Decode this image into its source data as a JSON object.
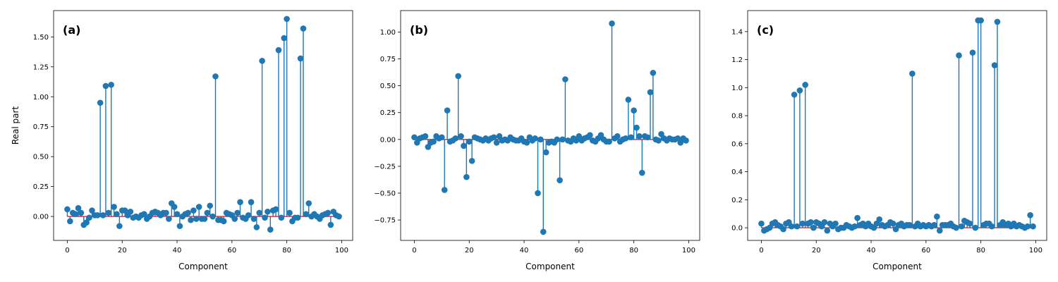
{
  "chart_data": [
    {
      "type": "stem",
      "panel_label": "(a)",
      "xlabel": "Component",
      "ylabel": "Real part",
      "xlim": [
        -5,
        104
      ],
      "ylim": [
        -0.2,
        1.72
      ],
      "xticks": [
        0,
        20,
        40,
        60,
        80,
        100
      ],
      "xtick_labels": [
        "0",
        "20",
        "40",
        "60",
        "80",
        "100"
      ],
      "yticks": [
        0,
        0.25,
        0.5,
        0.75,
        1.0,
        1.25,
        1.5
      ],
      "ytick_labels": [
        "0.00",
        "0.25",
        "0.50",
        "0.75",
        "1.00",
        "1.25",
        "1.50"
      ],
      "x": [
        0,
        1,
        2,
        3,
        4,
        5,
        6,
        7,
        8,
        9,
        10,
        11,
        12,
        13,
        14,
        15,
        16,
        17,
        18,
        19,
        20,
        21,
        22,
        23,
        24,
        25,
        26,
        27,
        28,
        29,
        30,
        31,
        32,
        33,
        34,
        35,
        36,
        37,
        38,
        39,
        40,
        41,
        42,
        43,
        44,
        45,
        46,
        47,
        48,
        49,
        50,
        51,
        52,
        53,
        54,
        55,
        56,
        57,
        58,
        59,
        60,
        61,
        62,
        63,
        64,
        65,
        66,
        67,
        68,
        69,
        70,
        71,
        72,
        73,
        74,
        75,
        76,
        77,
        78,
        79,
        80,
        81,
        82,
        83,
        84,
        85,
        86,
        87,
        88,
        89,
        90,
        91,
        92,
        93,
        94,
        95,
        96,
        97,
        98,
        99
      ],
      "values": [
        0.06,
        -0.04,
        0.03,
        0.02,
        0.07,
        0.03,
        -0.07,
        -0.05,
        -0.01,
        0.05,
        0.01,
        0.01,
        0.95,
        0.01,
        1.09,
        0.03,
        1.1,
        0.08,
        0.02,
        -0.08,
        0.05,
        0.05,
        0.01,
        0.04,
        -0.01,
        0.0,
        -0.01,
        0.01,
        0.02,
        -0.02,
        0.0,
        0.03,
        0.04,
        0.03,
        0.01,
        0.03,
        0.03,
        -0.02,
        0.11,
        0.08,
        0.02,
        -0.08,
        0.0,
        0.02,
        0.03,
        -0.03,
        0.05,
        -0.02,
        0.08,
        -0.02,
        -0.02,
        0.03,
        0.09,
        0.0,
        1.17,
        -0.03,
        -0.03,
        -0.04,
        0.03,
        0.02,
        0.01,
        -0.02,
        0.03,
        0.12,
        -0.01,
        -0.02,
        0.01,
        0.12,
        -0.02,
        -0.09,
        0.03,
        1.3,
        -0.01,
        0.04,
        -0.11,
        0.05,
        0.06,
        1.39,
        -0.01,
        1.49,
        1.65,
        0.03,
        -0.04,
        -0.01,
        -0.01,
        1.32,
        1.57,
        0.02,
        0.11,
        0.0,
        0.02,
        0.0,
        -0.02,
        0.01,
        0.02,
        0.03,
        -0.07,
        0.04,
        0.01,
        0.0
      ]
    },
    {
      "type": "stem",
      "panel_label": "(b)",
      "xlabel": "Component",
      "ylabel": "",
      "xlim": [
        -5,
        104
      ],
      "ylim": [
        -0.94,
        1.2
      ],
      "xticks": [
        0,
        20,
        40,
        60,
        80,
        100
      ],
      "xtick_labels": [
        "0",
        "20",
        "40",
        "60",
        "80",
        "100"
      ],
      "yticks": [
        -0.75,
        -0.5,
        -0.25,
        0,
        0.25,
        0.5,
        0.75,
        1.0
      ],
      "ytick_labels": [
        "−0.75",
        "−0.50",
        "−0.25",
        "0.00",
        "0.25",
        "0.50",
        "0.75",
        "1.00"
      ],
      "x": [
        0,
        1,
        2,
        3,
        4,
        5,
        6,
        7,
        8,
        9,
        10,
        11,
        12,
        13,
        14,
        15,
        16,
        17,
        18,
        19,
        20,
        21,
        22,
        23,
        24,
        25,
        26,
        27,
        28,
        29,
        30,
        31,
        32,
        33,
        34,
        35,
        36,
        37,
        38,
        39,
        40,
        41,
        42,
        43,
        44,
        45,
        46,
        47,
        48,
        49,
        50,
        51,
        52,
        53,
        54,
        55,
        56,
        57,
        58,
        59,
        60,
        61,
        62,
        63,
        64,
        65,
        66,
        67,
        68,
        69,
        70,
        71,
        72,
        73,
        74,
        75,
        76,
        77,
        78,
        79,
        80,
        81,
        82,
        83,
        84,
        85,
        86,
        87,
        88,
        89,
        90,
        91,
        92,
        93,
        94,
        95,
        96,
        97,
        98,
        99
      ],
      "values": [
        0.02,
        -0.03,
        0.01,
        0.02,
        0.03,
        -0.07,
        -0.03,
        -0.02,
        0.03,
        0.01,
        0.02,
        -0.47,
        0.27,
        -0.02,
        -0.01,
        0.01,
        0.59,
        0.03,
        -0.06,
        -0.35,
        -0.02,
        -0.2,
        0.02,
        0.01,
        0.0,
        -0.01,
        0.01,
        -0.01,
        0.01,
        0.02,
        -0.03,
        0.03,
        -0.01,
        0.0,
        -0.01,
        0.02,
        0.0,
        -0.01,
        -0.01,
        0.01,
        -0.02,
        -0.03,
        0.02,
        -0.01,
        0.01,
        -0.5,
        0.0,
        -0.86,
        -0.12,
        -0.03,
        -0.02,
        -0.03,
        0.0,
        -0.38,
        0.0,
        0.56,
        -0.01,
        -0.02,
        0.01,
        -0.01,
        0.03,
        -0.01,
        0.01,
        0.02,
        0.04,
        -0.01,
        -0.02,
        0.01,
        0.04,
        0.0,
        -0.02,
        -0.02,
        1.08,
        0.01,
        0.03,
        -0.02,
        0.0,
        0.01,
        0.37,
        0.02,
        0.27,
        0.11,
        0.03,
        -0.31,
        0.03,
        0.02,
        0.44,
        0.62,
        0.0,
        -0.01,
        0.05,
        0.01,
        -0.01,
        0.01,
        0.0,
        0.0,
        0.01,
        -0.03,
        0.01,
        -0.01
      ]
    },
    {
      "type": "stem",
      "panel_label": "(c)",
      "xlabel": "Component",
      "ylabel": "",
      "xlim": [
        -5,
        104
      ],
      "ylim": [
        -0.09,
        1.55
      ],
      "xticks": [
        0,
        20,
        40,
        60,
        80,
        100
      ],
      "xtick_labels": [
        "0",
        "20",
        "40",
        "60",
        "80",
        "100"
      ],
      "yticks": [
        0,
        0.2,
        0.4,
        0.6,
        0.8,
        1.0,
        1.2,
        1.4
      ],
      "ytick_labels": [
        "0.0",
        "0.2",
        "0.4",
        "0.6",
        "0.8",
        "1.0",
        "1.2",
        "1.4"
      ],
      "x": [
        0,
        1,
        2,
        3,
        4,
        5,
        6,
        7,
        8,
        9,
        10,
        11,
        12,
        13,
        14,
        15,
        16,
        17,
        18,
        19,
        20,
        21,
        22,
        23,
        24,
        25,
        26,
        27,
        28,
        29,
        30,
        31,
        32,
        33,
        34,
        35,
        36,
        37,
        38,
        39,
        40,
        41,
        42,
        43,
        44,
        45,
        46,
        47,
        48,
        49,
        50,
        51,
        52,
        53,
        54,
        55,
        56,
        57,
        58,
        59,
        60,
        61,
        62,
        63,
        64,
        65,
        66,
        67,
        68,
        69,
        70,
        71,
        72,
        73,
        74,
        75,
        76,
        77,
        78,
        79,
        80,
        81,
        82,
        83,
        84,
        85,
        86,
        87,
        88,
        89,
        90,
        91,
        92,
        93,
        94,
        95,
        96,
        97,
        98,
        99
      ],
      "values": [
        0.03,
        -0.02,
        -0.01,
        0.0,
        0.03,
        0.04,
        0.02,
        0.01,
        -0.01,
        0.03,
        0.04,
        0.01,
        0.95,
        0.01,
        0.98,
        0.03,
        1.02,
        0.03,
        0.04,
        0.0,
        0.04,
        0.03,
        0.01,
        0.04,
        -0.02,
        0.03,
        0.01,
        0.03,
        -0.01,
        0.0,
        0.0,
        0.02,
        0.01,
        0.0,
        0.01,
        0.07,
        0.02,
        0.03,
        0.01,
        0.03,
        0.01,
        0.0,
        0.03,
        0.06,
        0.02,
        0.01,
        0.02,
        0.04,
        0.03,
        -0.01,
        0.02,
        0.03,
        0.01,
        0.02,
        0.02,
        1.1,
        0.01,
        0.03,
        0.01,
        0.02,
        0.01,
        0.02,
        0.01,
        0.02,
        0.08,
        -0.02,
        0.02,
        0.02,
        0.02,
        0.03,
        0.01,
        0.0,
        1.23,
        0.01,
        0.05,
        0.04,
        0.03,
        1.25,
        0.0,
        1.48,
        1.48,
        0.02,
        0.03,
        0.03,
        0.01,
        1.16,
        1.47,
        0.02,
        0.04,
        0.02,
        0.03,
        0.01,
        0.03,
        0.01,
        0.02,
        0.01,
        0.0,
        0.01,
        0.09,
        0.01
      ]
    }
  ],
  "colors": {
    "stem": "#1f77b4",
    "baseline": "#d62728",
    "axes": "#000000"
  }
}
